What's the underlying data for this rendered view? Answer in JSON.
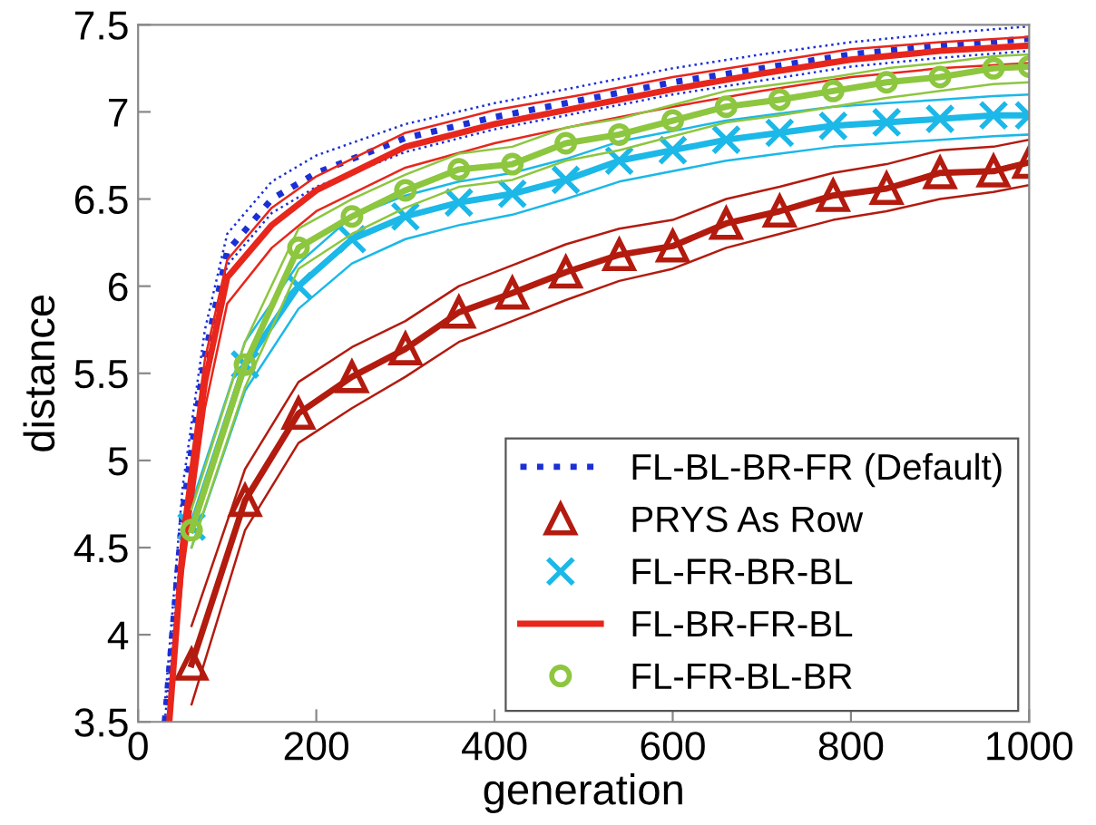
{
  "chart_data": {
    "type": "line",
    "xlabel": "generation",
    "ylabel": "distance",
    "xlim": [
      0,
      1000
    ],
    "ylim": [
      3.5,
      7.5
    ],
    "xticks": [
      0,
      200,
      400,
      600,
      800,
      1000
    ],
    "yticks": [
      3.5,
      4,
      4.5,
      5,
      5.5,
      6,
      6.5,
      7,
      7.5
    ],
    "grid": false,
    "legend": "bottom right",
    "series": [
      {
        "name": "FL-BL-BR-FR (Default)",
        "color": "#1a2fd6",
        "line_style": "dotted",
        "marker": "none",
        "x": [
          30,
          50,
          75,
          100,
          150,
          200,
          300,
          400,
          500,
          600,
          700,
          800,
          900,
          1000
        ],
        "values": [
          3.5,
          4.7,
          5.6,
          6.2,
          6.5,
          6.65,
          6.85,
          6.97,
          7.07,
          7.17,
          7.25,
          7.33,
          7.38,
          7.42
        ]
      },
      {
        "color": "#1a2fd6",
        "line_style": "dotted",
        "marker": "none",
        "x": [
          30,
          50,
          75,
          100,
          150,
          200,
          300,
          400,
          500,
          600,
          700,
          800,
          900,
          1000
        ],
        "values": [
          3.5,
          4.6,
          5.5,
          6.12,
          6.42,
          6.57,
          6.77,
          6.9,
          7.0,
          7.1,
          7.18,
          7.26,
          7.31,
          7.35
        ]
      },
      {
        "color": "#1a2fd6",
        "line_style": "dotted",
        "marker": "none",
        "x": [
          30,
          50,
          75,
          100,
          150,
          200,
          300,
          400,
          500,
          600,
          700,
          800,
          900,
          1000
        ],
        "values": [
          3.6,
          4.85,
          5.75,
          6.3,
          6.6,
          6.75,
          6.93,
          7.05,
          7.15,
          7.25,
          7.33,
          7.4,
          7.45,
          7.49
        ]
      },
      {
        "name": "PRYS As Row",
        "color": "#b31b0f",
        "line_style": "solid",
        "marker": "triangle",
        "x": [
          60,
          120,
          180,
          240,
          300,
          360,
          420,
          480,
          540,
          600,
          660,
          720,
          780,
          840,
          900,
          960,
          1000
        ],
        "values": [
          3.83,
          4.77,
          5.27,
          5.48,
          5.64,
          5.85,
          5.96,
          6.08,
          6.18,
          6.23,
          6.36,
          6.43,
          6.52,
          6.56,
          6.65,
          6.66,
          6.71
        ]
      },
      {
        "color": "#b31b0f",
        "line_style": "solid",
        "marker": "none",
        "x": [
          60,
          120,
          180,
          240,
          300,
          360,
          420,
          480,
          540,
          600,
          660,
          720,
          780,
          840,
          900,
          960,
          1000
        ],
        "values": [
          3.6,
          4.6,
          5.1,
          5.3,
          5.48,
          5.68,
          5.8,
          5.92,
          6.03,
          6.1,
          6.22,
          6.3,
          6.38,
          6.43,
          6.5,
          6.54,
          6.58
        ]
      },
      {
        "color": "#b31b0f",
        "line_style": "solid",
        "marker": "none",
        "x": [
          60,
          120,
          180,
          240,
          300,
          360,
          420,
          480,
          540,
          600,
          660,
          720,
          780,
          840,
          900,
          960,
          1000
        ],
        "values": [
          4.05,
          4.95,
          5.45,
          5.65,
          5.8,
          6.0,
          6.12,
          6.24,
          6.33,
          6.38,
          6.5,
          6.57,
          6.65,
          6.7,
          6.78,
          6.8,
          6.84
        ]
      },
      {
        "name": "FL-FR-BR-BL",
        "color": "#1bb8e8",
        "line_style": "solid",
        "marker": "cross",
        "x": [
          60,
          120,
          180,
          240,
          300,
          360,
          420,
          480,
          540,
          600,
          660,
          720,
          780,
          840,
          900,
          960,
          1000
        ],
        "values": [
          4.62,
          5.55,
          6.0,
          6.27,
          6.4,
          6.48,
          6.53,
          6.61,
          6.72,
          6.78,
          6.84,
          6.88,
          6.92,
          6.94,
          6.96,
          6.98,
          6.98
        ]
      },
      {
        "color": "#1bb8e8",
        "line_style": "solid",
        "marker": "none",
        "x": [
          60,
          120,
          180,
          240,
          300,
          360,
          420,
          480,
          540,
          600,
          660,
          720,
          780,
          840,
          900,
          960,
          1000
        ],
        "values": [
          4.5,
          5.4,
          5.87,
          6.13,
          6.27,
          6.35,
          6.41,
          6.5,
          6.6,
          6.66,
          6.72,
          6.76,
          6.8,
          6.82,
          6.84,
          6.86,
          6.87
        ]
      },
      {
        "color": "#1bb8e8",
        "line_style": "solid",
        "marker": "none",
        "x": [
          60,
          120,
          180,
          240,
          300,
          360,
          420,
          480,
          540,
          600,
          660,
          720,
          780,
          840,
          900,
          960,
          1000
        ],
        "values": [
          4.75,
          5.68,
          6.13,
          6.4,
          6.52,
          6.6,
          6.65,
          6.73,
          6.83,
          6.89,
          6.95,
          6.99,
          7.03,
          7.05,
          7.07,
          7.09,
          7.1
        ]
      },
      {
        "name": "FL-BR-FR-BL",
        "color": "#e8261c",
        "line_style": "solid",
        "marker": "none",
        "x": [
          35,
          50,
          75,
          100,
          150,
          200,
          300,
          400,
          500,
          600,
          700,
          800,
          900,
          1000
        ],
        "values": [
          3.5,
          4.5,
          5.45,
          6.05,
          6.35,
          6.55,
          6.8,
          6.93,
          7.03,
          7.13,
          7.22,
          7.3,
          7.35,
          7.38
        ]
      },
      {
        "color": "#e8261c",
        "line_style": "solid",
        "marker": "none",
        "x": [
          35,
          50,
          75,
          100,
          150,
          200,
          300,
          400,
          500,
          600,
          700,
          800,
          900,
          1000
        ],
        "values": [
          3.5,
          4.35,
          5.3,
          5.9,
          6.22,
          6.43,
          6.68,
          6.82,
          6.93,
          7.03,
          7.12,
          7.2,
          7.25,
          7.28
        ]
      },
      {
        "color": "#e8261c",
        "line_style": "solid",
        "marker": "none",
        "x": [
          35,
          50,
          75,
          100,
          150,
          200,
          300,
          400,
          500,
          600,
          700,
          800,
          900,
          1000
        ],
        "values": [
          3.6,
          4.62,
          5.58,
          6.15,
          6.45,
          6.63,
          6.88,
          7.01,
          7.1,
          7.2,
          7.28,
          7.36,
          7.4,
          7.43
        ]
      },
      {
        "name": "FL-FR-BL-BR",
        "color": "#8dc63f",
        "line_style": "solid",
        "marker": "circle",
        "x": [
          60,
          120,
          180,
          240,
          300,
          360,
          420,
          480,
          540,
          600,
          660,
          720,
          780,
          840,
          900,
          960,
          1000
        ],
        "values": [
          4.6,
          5.55,
          6.22,
          6.4,
          6.55,
          6.67,
          6.7,
          6.82,
          6.87,
          6.95,
          7.03,
          7.07,
          7.12,
          7.17,
          7.2,
          7.25,
          7.26
        ]
      },
      {
        "color": "#8dc63f",
        "line_style": "solid",
        "marker": "none",
        "x": [
          60,
          120,
          180,
          240,
          300,
          360,
          420,
          480,
          540,
          600,
          660,
          720,
          780,
          840,
          900,
          960,
          1000
        ],
        "values": [
          4.5,
          5.42,
          6.1,
          6.3,
          6.45,
          6.57,
          6.61,
          6.72,
          6.78,
          6.86,
          6.94,
          6.98,
          7.03,
          7.08,
          7.12,
          7.16,
          7.17
        ]
      },
      {
        "color": "#8dc63f",
        "line_style": "solid",
        "marker": "none",
        "x": [
          60,
          120,
          180,
          240,
          300,
          360,
          420,
          480,
          540,
          600,
          660,
          720,
          780,
          840,
          900,
          960,
          1000
        ],
        "values": [
          4.72,
          5.68,
          6.33,
          6.5,
          6.64,
          6.76,
          6.8,
          6.91,
          6.96,
          7.04,
          7.12,
          7.16,
          7.2,
          7.25,
          7.28,
          7.32,
          7.33
        ]
      }
    ]
  }
}
